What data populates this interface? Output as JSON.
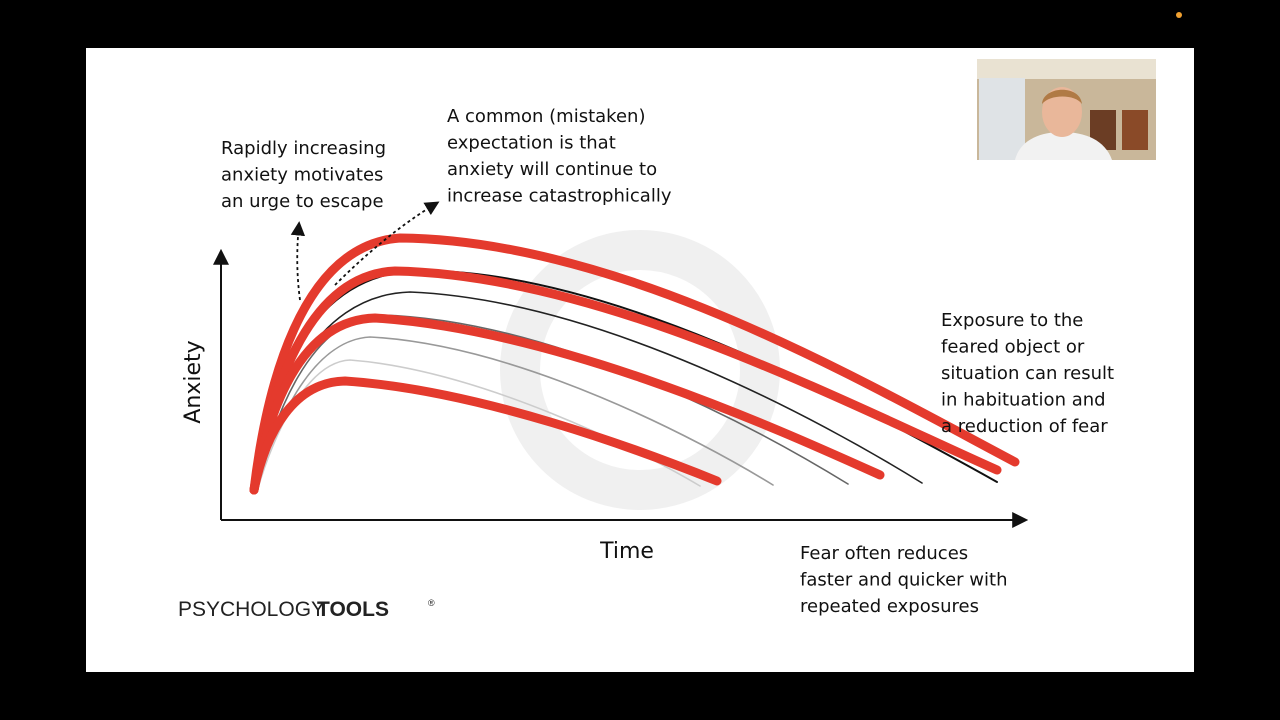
{
  "slide": {
    "escape_note": [
      "Rapidly increasing",
      "anxiety motivates",
      "an urge to escape"
    ],
    "expectation_note": [
      "A common (mistaken)",
      "expectation is that",
      "anxiety will continue to",
      "increase catastrophically"
    ],
    "y_axis_label": "Anxiety",
    "x_axis_label": "Time",
    "habituation_note": [
      "Exposure to the",
      "feared object or",
      "situation can result",
      "in habituation and",
      "a reduction of fear"
    ],
    "repeat_note": [
      "Fear often reduces",
      "faster and quicker with",
      "repeated exposures"
    ],
    "logo": {
      "left": "PSYCHOLOGY",
      "right": "TOOLS",
      "mark": "®"
    }
  }
}
